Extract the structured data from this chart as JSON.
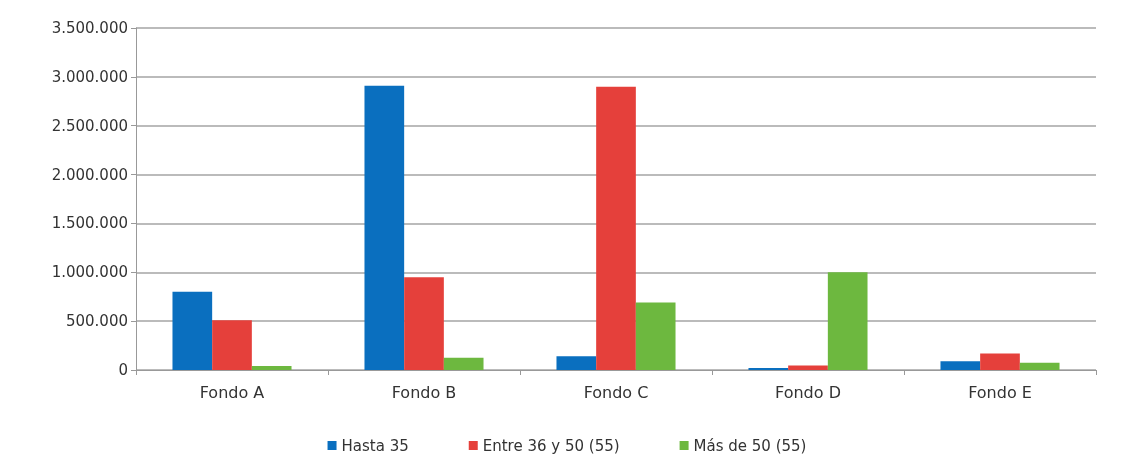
{
  "chart_data": {
    "type": "bar",
    "categories": [
      "Fondo A",
      "Fondo B",
      "Fondo C",
      "Fondo D",
      "Fondo E"
    ],
    "series": [
      {
        "name": "Hasta 35",
        "color": "#0a6fbf",
        "values": [
          800000,
          2910000,
          140000,
          20000,
          90000
        ]
      },
      {
        "name": "Entre 36 y 50 (55)",
        "color": "#e5403b",
        "values": [
          510000,
          950000,
          2900000,
          45000,
          170000
        ]
      },
      {
        "name": "Más de 50 (55)",
        "color": "#6db83f",
        "values": [
          40000,
          125000,
          690000,
          1000000,
          75000
        ]
      }
    ],
    "ylim": [
      0,
      3500000
    ],
    "yticks": [
      {
        "value": 0,
        "label": "0"
      },
      {
        "value": 500000,
        "label": "500.000"
      },
      {
        "value": 1000000,
        "label": "1.000.000"
      },
      {
        "value": 1500000,
        "label": "1.500.000"
      },
      {
        "value": 2000000,
        "label": "2.000.000"
      },
      {
        "value": 2500000,
        "label": "2.500.000"
      },
      {
        "value": 3000000,
        "label": "3.000.000"
      },
      {
        "value": 3500000,
        "label": "3.500.000"
      }
    ],
    "grid": "y",
    "legend": "bottom"
  }
}
